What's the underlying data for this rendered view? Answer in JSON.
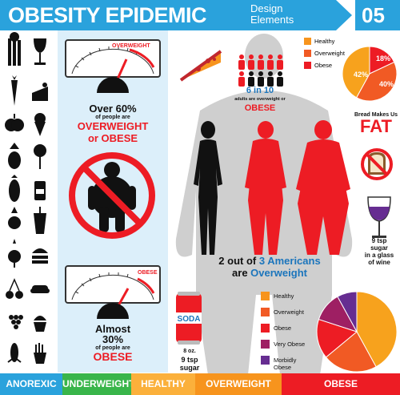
{
  "header": {
    "title": "OBESITY EPIDEMIC",
    "subtitle_line1": "Design",
    "subtitle_line2": "Elements",
    "number": "05"
  },
  "gauge_top": {
    "label": "OVERWEIGHT",
    "stat_line1": "Over 60%",
    "stat_small": "of people are",
    "stat_red1": "OVERWEIGHT",
    "stat_red2": "or OBESE"
  },
  "gauge_bottom": {
    "label": "OBESE",
    "stat_line1": "Almost",
    "stat_line2": "30%",
    "stat_small": "of people are",
    "stat_red": "OBESE"
  },
  "people_stat": {
    "big": "6 in 10",
    "small": "adults are overweight or",
    "red": "OBESE"
  },
  "americans": {
    "line1_a": "2 out of ",
    "line1_b": "3 Americans",
    "line2_a": "are ",
    "line2_b": "Overweight"
  },
  "legend_top": [
    {
      "label": "Healthy",
      "color": "#f7941d"
    },
    {
      "label": "Overweight",
      "color": "#f15a24"
    },
    {
      "label": "Obese",
      "color": "#ed1c24"
    }
  ],
  "pie_top": {
    "type": "pie",
    "labels": [
      "Healthy",
      "Overweight",
      "Obese"
    ],
    "values": [
      42,
      40,
      18
    ],
    "value_labels": [
      "42%",
      "40%",
      "18%"
    ],
    "colors": [
      "#f7a21d",
      "#f15a24",
      "#ed1c24"
    ]
  },
  "bread": {
    "line1": "Bread Makes Us",
    "big": "FAT"
  },
  "wine": {
    "line1": "9 tsp",
    "line2": "sugar",
    "line3": "in a glass",
    "line4": "of wine"
  },
  "soda": {
    "can_label": "SODA",
    "oz": "8 oz.",
    "line1": "9 tsp",
    "line2": "sugar"
  },
  "legend_bottom": [
    {
      "label": "Healthy",
      "color": "#f7941d"
    },
    {
      "label": "Overweight",
      "color": "#f15a24"
    },
    {
      "label": "Obese",
      "color": "#ed1c24"
    },
    {
      "label": "Very Obese",
      "color": "#9e1f63"
    },
    {
      "label": "Morbidly Obese",
      "color": "#662d91"
    }
  ],
  "pie_bottom_colors": [
    "#f7a21d",
    "#f15a24",
    "#ed1c24",
    "#9e1f63",
    "#662d91"
  ],
  "bottom_bar": [
    {
      "label": "ANOREXIC",
      "color": "#2aa2dc"
    },
    {
      "label": "UNDERWEIGHT",
      "color": "#39b54a"
    },
    {
      "label": "HEALTHY",
      "color": "#fbb03b"
    },
    {
      "label": "OVERWEIGHT",
      "color": "#f7941d"
    },
    {
      "label": "OBESE",
      "color": "#ed1c24"
    }
  ],
  "icons": [
    "celery-icon",
    "wine-glass-icon",
    "carrot-icon",
    "cake-slice-icon",
    "apple-icon",
    "ice-cream-icon",
    "pineapple-icon",
    "lollipop-icon",
    "eggplant-icon",
    "soda-can-icon",
    "radish-icon",
    "milkshake-icon",
    "beet-icon",
    "burger-icon",
    "cherries-icon",
    "hotdog-icon",
    "grapes-icon",
    "cupcake-icon",
    "corn-icon",
    "fries-icon"
  ]
}
